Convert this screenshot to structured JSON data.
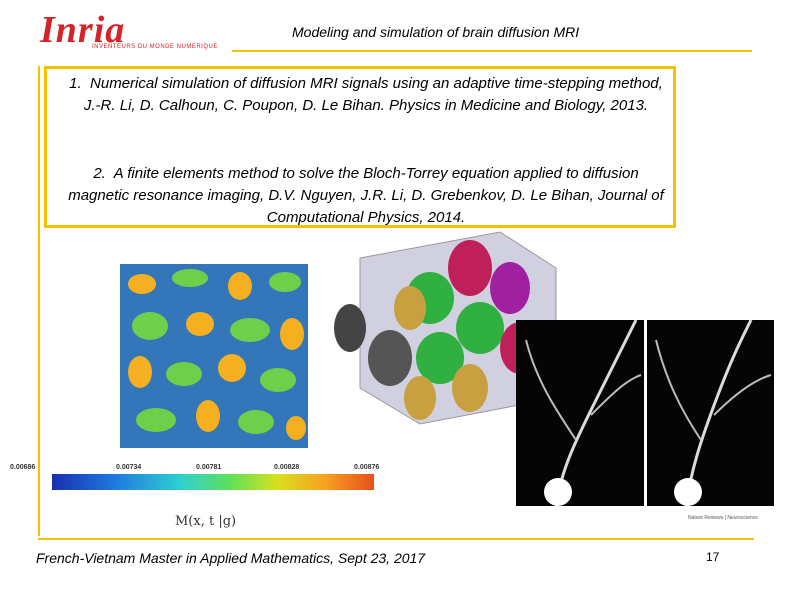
{
  "logo": {
    "name": "Inria",
    "tagline": "INVENTEURS DU MONDE NUMERIQUE"
  },
  "header": {
    "title": "Modeling and simulation of brain diffusion MRI"
  },
  "references": [
    {
      "number": "1.",
      "text": "Numerical simulation of diffusion MRI signals using an adaptive time-stepping method, J.-R. Li, D. Calhoun, C. Poupon, D. Le Bihan. Physics in Medicine and Biology, 2013."
    },
    {
      "number": "2.",
      "text": "A finite elements method to solve the Bloch-Torrey equation applied to diffusion magnetic resonance imaging, D.V. Nguyen, J.R. Li, D. Grebenkov, D. Le Bihan, Journal of Computational Physics, 2014."
    }
  ],
  "colorbar": {
    "ticks": [
      "0.00686",
      "0.00734",
      "0.00781",
      "0.00828",
      "0.00876"
    ]
  },
  "formula": "M(x, t |g)",
  "micro_credit": "Nature Reviews | Neuroscience",
  "footer": {
    "text": "French-Vietnam Master in Applied Mathematics, Sept 23, 2017",
    "page": "17"
  },
  "colors": {
    "accent": "#f2c200",
    "brand": "#d6232a"
  }
}
